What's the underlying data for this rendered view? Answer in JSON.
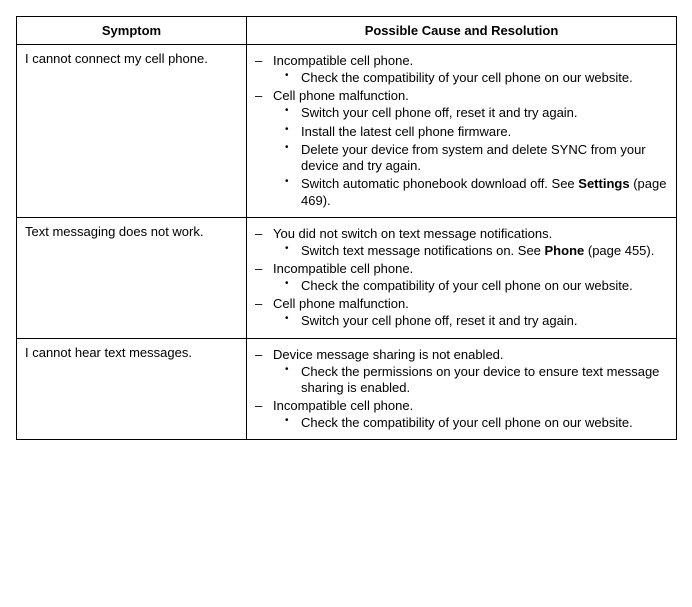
{
  "table": {
    "headers": {
      "symptom": "Symptom",
      "cause": "Possible Cause and Resolution"
    },
    "rows": [
      {
        "symptom": "I cannot connect my cell phone.",
        "causes": [
          {
            "text": "Incompatible cell phone.",
            "subs": [
              {
                "text": "Check the compatibility of your cell phone on our website."
              }
            ]
          },
          {
            "text": "Cell phone malfunction.",
            "subs": [
              {
                "text": "Switch your cell phone off, reset it and try again."
              },
              {
                "text": "Install the latest cell phone firmware."
              },
              {
                "text": "Delete your device from system and delete SYNC from your device and try again."
              },
              {
                "text": "Switch automatic phonebook download off.  See ",
                "bold": "Settings",
                "tail": " (page 469)."
              }
            ]
          }
        ]
      },
      {
        "symptom": "Text messaging does not work.",
        "causes": [
          {
            "text": "You did not switch on text message notifications.",
            "subs": [
              {
                "text": "Switch text message notifications on. See ",
                "bold": "Phone",
                "tail": " (page 455)."
              }
            ]
          },
          {
            "text": "Incompatible cell phone.",
            "subs": [
              {
                "text": "Check the compatibility of your cell phone on our website."
              }
            ]
          },
          {
            "text": "Cell phone malfunction.",
            "subs": [
              {
                "text": "Switch your cell phone off, reset it and try again."
              }
            ]
          }
        ]
      },
      {
        "symptom": "I cannot hear text messages.",
        "causes": [
          {
            "text": "Device message sharing is not enabled.",
            "subs": [
              {
                "text": "Check the permissions on your device to ensure text message sharing is enabled."
              }
            ]
          },
          {
            "text": "Incompatible cell phone.",
            "subs": [
              {
                "text": "Check the compatibility of your cell phone on our website."
              }
            ]
          }
        ]
      }
    ]
  }
}
